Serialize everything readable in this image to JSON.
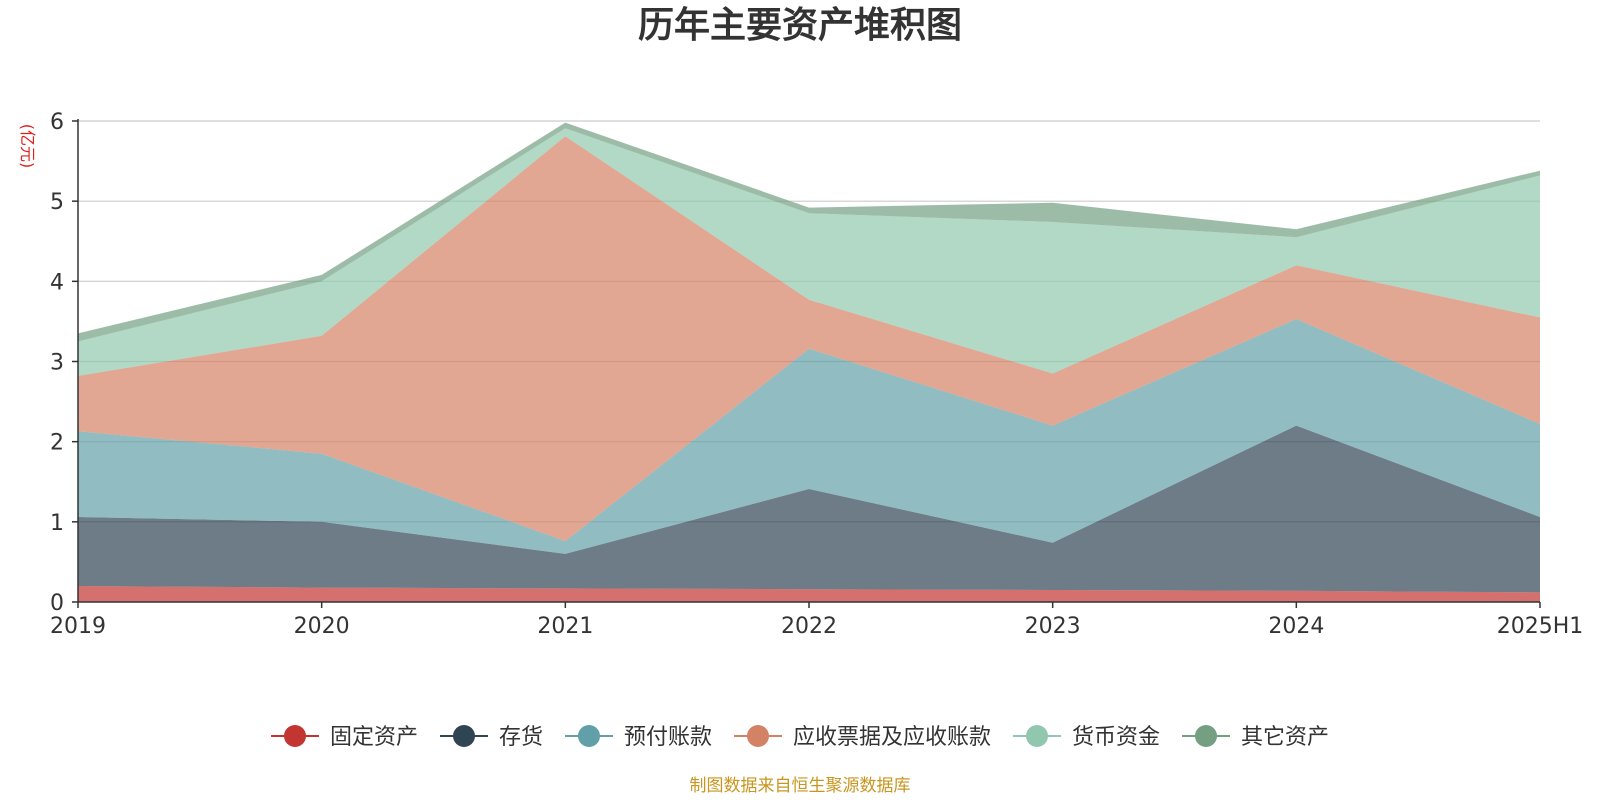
{
  "chart_data": {
    "type": "area",
    "stacked": true,
    "title": "历年主要资产堆积图",
    "unit_label": "(亿元)",
    "categories": [
      "2019",
      "2020",
      "2021",
      "2022",
      "2023",
      "2024",
      "2025H1"
    ],
    "ylim": [
      0,
      6
    ],
    "yticks": [
      "0",
      "1",
      "2",
      "3",
      "4",
      "5",
      "6"
    ],
    "grid": true,
    "legend_position": "bottom",
    "series": [
      {
        "name": "固定资产",
        "color": "#c23531",
        "values": [
          0.2,
          0.18,
          0.17,
          0.16,
          0.15,
          0.14,
          0.12
        ]
      },
      {
        "name": "存货",
        "color": "#2f4554",
        "values": [
          0.86,
          0.82,
          0.43,
          1.25,
          0.59,
          2.06,
          0.94
        ]
      },
      {
        "name": "预付账款",
        "color": "#61a0a8",
        "values": [
          1.07,
          0.85,
          0.16,
          1.75,
          1.46,
          1.33,
          1.16
        ]
      },
      {
        "name": "应收票据及应收账款",
        "color": "#d48265",
        "values": [
          0.69,
          1.47,
          5.05,
          0.61,
          0.65,
          0.67,
          1.33
        ]
      },
      {
        "name": "货币资金",
        "color": "#91c7ae",
        "values": [
          0.43,
          0.68,
          0.1,
          1.08,
          1.89,
          0.35,
          1.77
        ]
      },
      {
        "name": "其它资产",
        "color": "#749f83",
        "values": [
          0.1,
          0.08,
          0.07,
          0.07,
          0.24,
          0.1,
          0.06
        ]
      }
    ]
  },
  "footer": {
    "source": "制图数据来自恒生聚源数据库"
  }
}
